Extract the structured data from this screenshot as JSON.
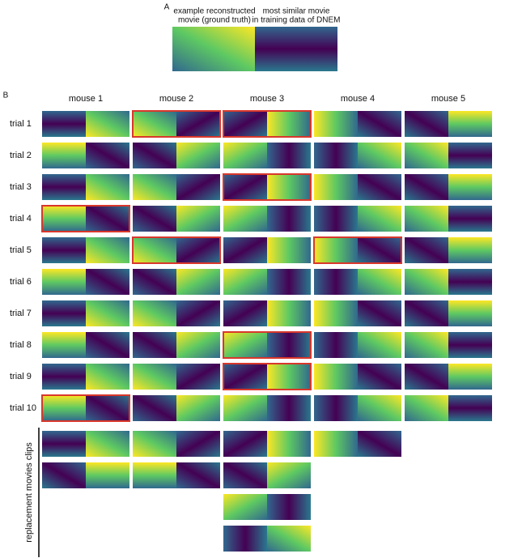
{
  "panel_a": {
    "label": "A",
    "left_caption": [
      "example reconstructed",
      "movie (ground truth)"
    ],
    "right_caption": [
      "most similar movie",
      "in training data of DNEM"
    ]
  },
  "panel_b": {
    "label": "B",
    "columns": [
      "mouse 1",
      "mouse 2",
      "mouse 3",
      "mouse 4",
      "mouse 5"
    ],
    "rows": [
      {
        "label": "trial 1",
        "highlighted": [
          false,
          true,
          true,
          false,
          false
        ]
      },
      {
        "label": "trial 2",
        "highlighted": [
          false,
          false,
          false,
          false,
          false
        ]
      },
      {
        "label": "trial 3",
        "highlighted": [
          false,
          false,
          true,
          false,
          false
        ]
      },
      {
        "label": "trial 4",
        "highlighted": [
          true,
          false,
          false,
          false,
          false
        ]
      },
      {
        "label": "trial 5",
        "highlighted": [
          false,
          true,
          false,
          true,
          false
        ]
      },
      {
        "label": "trial 6",
        "highlighted": [
          false,
          false,
          false,
          false,
          false
        ]
      },
      {
        "label": "trial 7",
        "highlighted": [
          false,
          false,
          false,
          false,
          false
        ]
      },
      {
        "label": "trial 8",
        "highlighted": [
          false,
          false,
          true,
          false,
          false
        ]
      },
      {
        "label": "trial 9",
        "highlighted": [
          false,
          false,
          true,
          false,
          false
        ]
      },
      {
        "label": "trial 10",
        "highlighted": [
          true,
          false,
          false,
          false,
          false
        ]
      }
    ],
    "replacement_label": "replacement movies clips"
  }
}
